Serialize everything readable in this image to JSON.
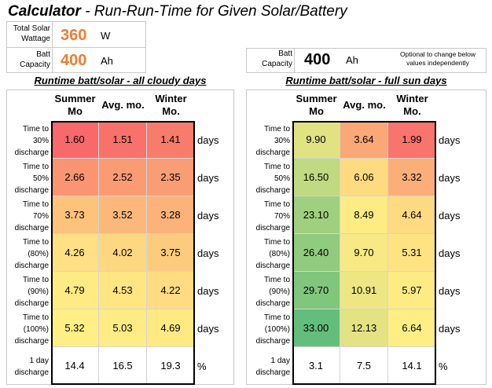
{
  "title": {
    "bold": "Calculator",
    "rest": " - Run-Run-Time for Given Solar/Battery"
  },
  "inputs": {
    "solar_label_1": "Total Solar",
    "solar_label_2": "Wattage",
    "solar_value": "360",
    "solar_unit": "W",
    "batt_label_1": "Batt",
    "batt_label_2": "Capacity",
    "batt_value": "400",
    "batt_unit": "Ah",
    "batt2_label_1": "Batt",
    "batt2_label_2": "Capacity",
    "batt2_value": "400",
    "batt2_unit": "Ah",
    "note_1": "Optional to change below",
    "note_2": "values independently"
  },
  "colors": {
    "accent_orange": "#ED7D31"
  },
  "left": {
    "title": "Runtime batt/solar - all cloudy days",
    "headers": [
      [
        "Summer",
        "Mo"
      ],
      [
        "Avg. mo.",
        ""
      ],
      [
        "Winter",
        "Mo."
      ]
    ],
    "rows": [
      {
        "l1": "Time to",
        "l2": "30%",
        "l3": "discharge",
        "v": [
          "1.60",
          "1.51",
          "1.41"
        ],
        "u": "days"
      },
      {
        "l1": "Time to",
        "l2": "50%",
        "l3": "discharge",
        "v": [
          "2.66",
          "2.52",
          "2.35"
        ],
        "u": "days"
      },
      {
        "l1": "Time to",
        "l2": "70%",
        "l3": "discharge",
        "v": [
          "3.73",
          "3.52",
          "3.28"
        ],
        "u": "days"
      },
      {
        "l1": "Time to",
        "l2": "(80%)",
        "l3": "discharge",
        "v": [
          "4.26",
          "4.02",
          "3.75"
        ],
        "u": "days"
      },
      {
        "l1": "Time to",
        "l2": "(90%)",
        "l3": "discharge",
        "v": [
          "4.79",
          "4.53",
          "4.22"
        ],
        "u": "days"
      },
      {
        "l1": "Time to",
        "l2": "(100%)",
        "l3": "discharge",
        "v": [
          "5.32",
          "5.03",
          "4.69"
        ],
        "u": "days"
      },
      {
        "l1": "1 day",
        "l2": "discharge",
        "l3": "",
        "v": [
          "14.4",
          "16.5",
          "19.3"
        ],
        "u": "%"
      }
    ],
    "fills": [
      [
        "#F8696B",
        "#F8726B",
        "#F87C6C"
      ],
      [
        "#FA9473",
        "#FA9B74",
        "#F99D75"
      ],
      [
        "#FDC27C",
        "#FCB87A",
        "#FCB279"
      ],
      [
        "#FFE084",
        "#FED880",
        "#FDCB7D"
      ],
      [
        "#FFEB84",
        "#FFE683",
        "#FFDC81"
      ],
      [
        "#FFEF85",
        "#FFEC84",
        "#FFE983"
      ],
      [
        "#FFFFFF",
        "#FFFFFF",
        "#FFFFFF"
      ]
    ]
  },
  "right": {
    "title": "Runtime batt/solar - full sun days",
    "headers": [
      [
        "Summer",
        "Mo"
      ],
      [
        "Avg. mo.",
        ""
      ],
      [
        "Winter",
        "Mo."
      ]
    ],
    "rows": [
      {
        "l1": "Time to",
        "l2": "30%",
        "l3": "discharge",
        "v": [
          "9.90",
          "3.64",
          "1.99"
        ],
        "u": "days"
      },
      {
        "l1": "Time to",
        "l2": "50%",
        "l3": "discharge",
        "v": [
          "16.50",
          "6.06",
          "3.32"
        ],
        "u": "days"
      },
      {
        "l1": "Time to",
        "l2": "70%",
        "l3": "discharge",
        "v": [
          "23.10",
          "8.49",
          "4.64"
        ],
        "u": "days"
      },
      {
        "l1": "Time to",
        "l2": "(80%)",
        "l3": "discharge",
        "v": [
          "26.40",
          "9.70",
          "5.31"
        ],
        "u": "days"
      },
      {
        "l1": "Time to",
        "l2": "(90%)",
        "l3": "discharge",
        "v": [
          "29.70",
          "10.91",
          "5.97"
        ],
        "u": "days"
      },
      {
        "l1": "Time to",
        "l2": "(100%)",
        "l3": "discharge",
        "v": [
          "33.00",
          "12.13",
          "6.64"
        ],
        "u": "days"
      },
      {
        "l1": "1 day",
        "l2": "discharge",
        "l3": "",
        "v": [
          "3.1",
          "7.5",
          "14.1"
        ],
        "u": "%"
      }
    ],
    "fills": [
      [
        "#E1E383",
        "#FBA877",
        "#F8746C"
      ],
      [
        "#C0DA81",
        "#FEDB81",
        "#FCAE79"
      ],
      [
        "#A0D07F",
        "#FDEB84",
        "#FEDA80"
      ],
      [
        "#91CB7E",
        "#F8E984",
        "#FFE383"
      ],
      [
        "#80C67D",
        "#EEE683",
        "#FFEB84"
      ],
      [
        "#63BE7B",
        "#E3E383",
        "#FEEE84"
      ],
      [
        "#FFFFFF",
        "#FFFFFF",
        "#FFFFFF"
      ]
    ]
  }
}
